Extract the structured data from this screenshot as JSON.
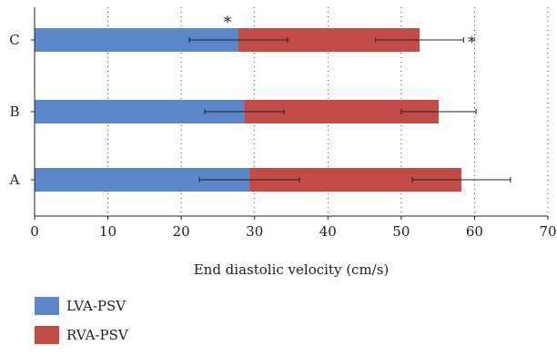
{
  "chart_data": {
    "type": "bar",
    "orientation": "horizontal",
    "stacked": true,
    "categories": [
      "A",
      "B",
      "C"
    ],
    "series": [
      {
        "name": "LVA-PSV",
        "color": "#5B86C9",
        "values": [
          29.3,
          28.6,
          27.8
        ],
        "error": [
          6.8,
          5.4,
          6.7
        ]
      },
      {
        "name": "RVA-PSV",
        "color": "#C24B46",
        "values": [
          28.9,
          26.5,
          24.7
        ],
        "error": [
          6.7,
          5.1,
          6.0
        ]
      }
    ],
    "annotations": [
      {
        "category": "C",
        "series": "LVA-PSV",
        "text": "*"
      },
      {
        "category": "C",
        "series": "RVA-PSV",
        "text": "*"
      }
    ],
    "xlabel": "End diastolic velocity (cm/s)",
    "ylabel": "",
    "xlim": [
      0,
      70
    ],
    "xticks": [
      "0",
      "10",
      "20",
      "30",
      "40",
      "50",
      "60",
      "70"
    ],
    "grid": "vertical dotted",
    "legend_position": "bottom-left"
  }
}
